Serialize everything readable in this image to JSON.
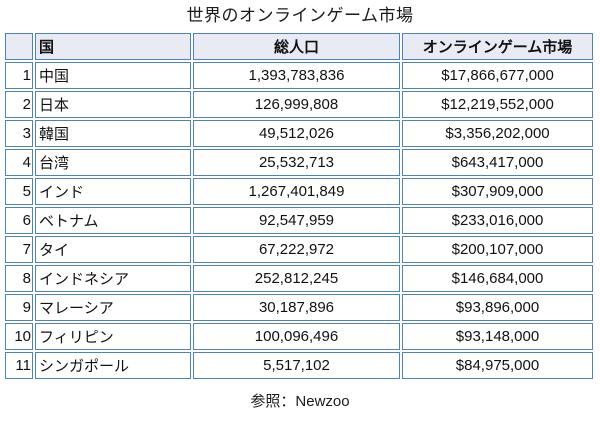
{
  "title": "世界のオンラインゲーム市場",
  "table": {
    "columns": [
      "",
      "国",
      "総人口",
      "オンラインゲーム市場"
    ],
    "rows": [
      {
        "rank": "1",
        "country": "中国",
        "population": "1,393,783,836",
        "market": "$17,866,677,000"
      },
      {
        "rank": "2",
        "country": "日本",
        "population": "126,999,808",
        "market": "$12,219,552,000"
      },
      {
        "rank": "3",
        "country": "韓国",
        "population": "49,512,026",
        "market": "$3,356,202,000"
      },
      {
        "rank": "4",
        "country": "台湾",
        "population": "25,532,713",
        "market": "$643,417,000"
      },
      {
        "rank": "5",
        "country": "インド",
        "population": "1,267,401,849",
        "market": "$307,909,000"
      },
      {
        "rank": "6",
        "country": "ベトナム",
        "population": "92,547,959",
        "market": "$233,016,000"
      },
      {
        "rank": "7",
        "country": "タイ",
        "population": "67,222,972",
        "market": "$200,107,000"
      },
      {
        "rank": "8",
        "country": "インドネシア",
        "population": "252,812,245",
        "market": "$146,684,000"
      },
      {
        "rank": "9",
        "country": "マレーシア",
        "population": "30,187,896",
        "market": "$93,896,000"
      },
      {
        "rank": "10",
        "country": "フィリピン",
        "population": "100,096,496",
        "market": "$93,148,000"
      },
      {
        "rank": "11",
        "country": "シンガポール",
        "population": "5,517,102",
        "market": "$84,975,000"
      }
    ]
  },
  "footer": {
    "source": "参照：Newzoo"
  },
  "colors": {
    "border": "#4f81bd",
    "header_bg": "#e8ebf4",
    "text": "#111111"
  },
  "chart_data": {
    "type": "table",
    "title": "世界のオンラインゲーム市場",
    "columns": [
      "国",
      "総人口",
      "オンラインゲーム市場"
    ],
    "rows": [
      [
        "中国",
        1393783836,
        17866677000
      ],
      [
        "日本",
        126999808,
        12219552000
      ],
      [
        "韓国",
        49512026,
        3356202000
      ],
      [
        "台湾",
        25532713,
        643417000
      ],
      [
        "インド",
        1267401849,
        307909000
      ],
      [
        "ベトナム",
        92547959,
        233016000
      ],
      [
        "タイ",
        67222972,
        200107000
      ],
      [
        "インドネシア",
        252812245,
        146684000
      ],
      [
        "マレーシア",
        30187896,
        93896000
      ],
      [
        "フィリピン",
        100096496,
        93148000
      ],
      [
        "シンガポール",
        5517102,
        84975000
      ]
    ],
    "units": {
      "総人口": "people",
      "オンラインゲーム市場": "USD"
    },
    "source": "参照：Newzoo"
  }
}
